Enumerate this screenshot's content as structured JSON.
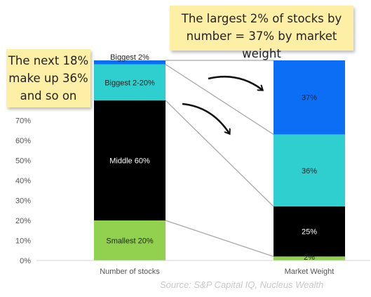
{
  "chart_data": {
    "type": "bar",
    "stacked": true,
    "categories": [
      "Number of stocks",
      "Market Weight"
    ],
    "series": [
      {
        "name": "Smallest 20%",
        "values": [
          20,
          2
        ],
        "color": "#92d050"
      },
      {
        "name": "Middle 60%",
        "values": [
          60,
          25
        ],
        "color": "#000000"
      },
      {
        "name": "Biggest 2-20%",
        "values": [
          18,
          36
        ],
        "color": "#2ecfce"
      },
      {
        "name": "Biggest 2%",
        "values": [
          2,
          37
        ],
        "color": "#0b6ef5"
      }
    ],
    "segment_labels": [
      [
        "Smallest 20%",
        "Middle 60%",
        "Biggest 2-20%",
        "Biggest 2%"
      ],
      [
        "2%",
        "25%",
        "36%",
        "37%"
      ]
    ],
    "ylim": [
      0,
      100
    ],
    "yticks": [
      "0%",
      "10%",
      "20%",
      "30%",
      "40%",
      "50%",
      "60%",
      "70%"
    ],
    "ytick_values": [
      0,
      10,
      20,
      30,
      40,
      50,
      60,
      70
    ],
    "legend": "none",
    "grid": false
  },
  "annotations": {
    "top_note": "The largest 2% of stocks by number = 37% by market weight",
    "left_note": "The next 18%\nmake up 36%\nand so on"
  },
  "source": "Source: S&P Capital IQ, Nucleus Wealth"
}
